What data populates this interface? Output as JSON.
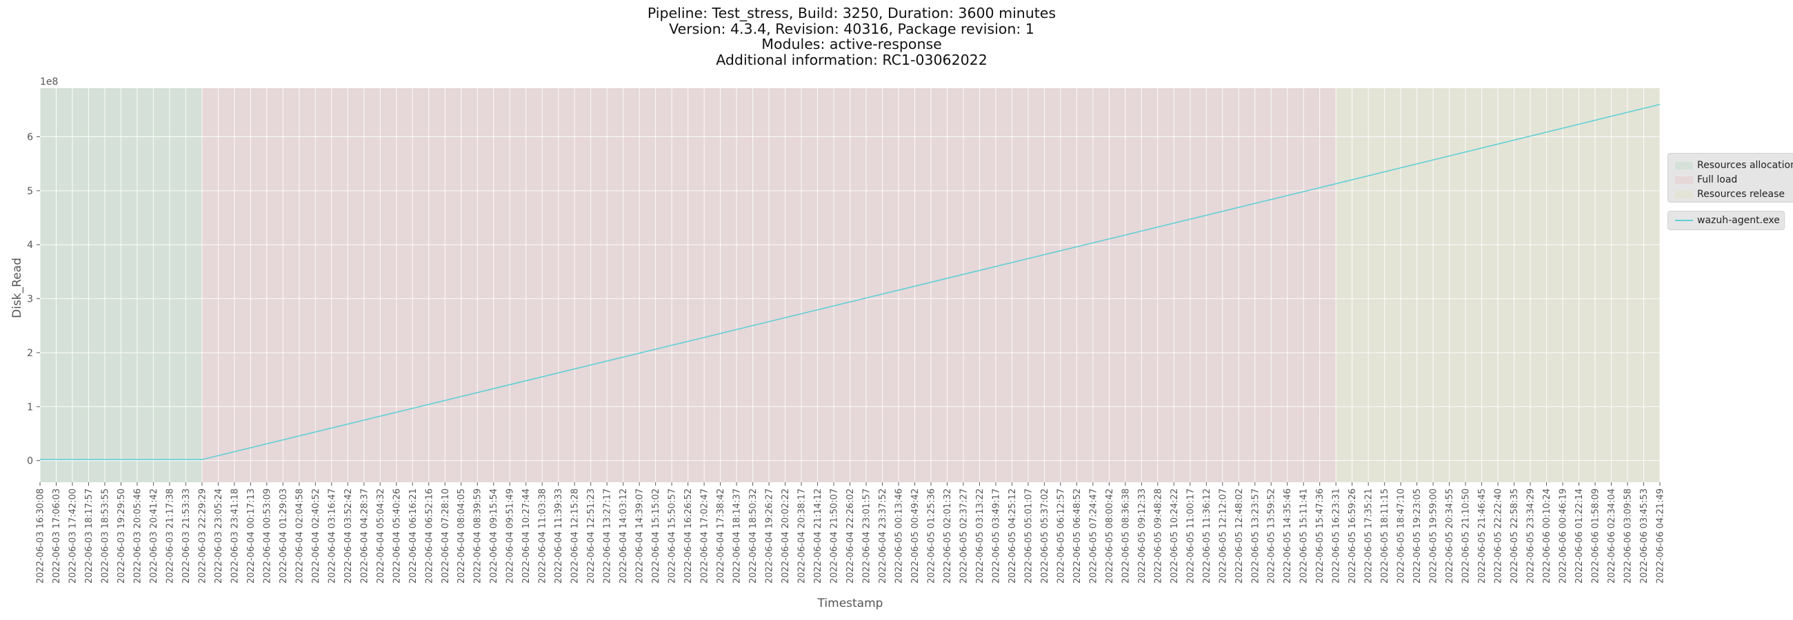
{
  "title_lines": [
    "Pipeline: Test_stress, Build: 3250, Duration: 3600 minutes",
    "Version: 4.3.4, Revision: 40316, Package revision: 1",
    "Modules: active-response",
    "Additional information: RC1-03062022"
  ],
  "colors": {
    "background": "#e5e5e5",
    "grid": "#ffffff",
    "line": "#5fd0d6",
    "phase_allocation": "#d5e1d8",
    "phase_full_load": "#e6d7d9",
    "phase_release": "#e3e4d6"
  },
  "chart_data": {
    "type": "line",
    "xlabel": "Timestamp",
    "ylabel": "Disk_Read",
    "y_offset_label": "1e8",
    "ylim": [
      -0.4,
      6.9
    ],
    "y_ticks": [
      0,
      1,
      2,
      3,
      4,
      5,
      6
    ],
    "y_unit_multiplier": 100000000,
    "grid": true,
    "legend_placement": "right-center",
    "x_ticks": [
      "2022-06-03 16:30:08",
      "2022-06-03 17:06:03",
      "2022-06-03 17:42:00",
      "2022-06-03 18:17:57",
      "2022-06-03 18:53:55",
      "2022-06-03 19:29:50",
      "2022-06-03 20:05:46",
      "2022-06-03 20:41:42",
      "2022-06-03 21:17:38",
      "2022-06-03 21:53:33",
      "2022-06-03 22:29:29",
      "2022-06-03 23:05:24",
      "2022-06-03 23:41:18",
      "2022-06-04 00:17:13",
      "2022-06-04 00:53:09",
      "2022-06-04 01:29:03",
      "2022-06-04 02:04:58",
      "2022-06-04 02:40:52",
      "2022-06-04 03:16:47",
      "2022-06-04 03:52:42",
      "2022-06-04 04:28:37",
      "2022-06-04 05:04:32",
      "2022-06-04 05:40:26",
      "2022-06-04 06:16:21",
      "2022-06-04 06:52:16",
      "2022-06-04 07:28:10",
      "2022-06-04 08:04:05",
      "2022-06-04 08:39:59",
      "2022-06-04 09:15:54",
      "2022-06-04 09:51:49",
      "2022-06-04 10:27:44",
      "2022-06-04 11:03:38",
      "2022-06-04 11:39:33",
      "2022-06-04 12:15:28",
      "2022-06-04 12:51:23",
      "2022-06-04 13:27:17",
      "2022-06-04 14:03:12",
      "2022-06-04 14:39:07",
      "2022-06-04 15:15:02",
      "2022-06-04 15:50:57",
      "2022-06-04 16:26:52",
      "2022-06-04 17:02:47",
      "2022-06-04 17:38:42",
      "2022-06-04 18:14:37",
      "2022-06-04 18:50:32",
      "2022-06-04 19:26:27",
      "2022-06-04 20:02:22",
      "2022-06-04 20:38:17",
      "2022-06-04 21:14:12",
      "2022-06-04 21:50:07",
      "2022-06-04 22:26:02",
      "2022-06-04 23:01:57",
      "2022-06-04 23:37:52",
      "2022-06-05 00:13:46",
      "2022-06-05 00:49:42",
      "2022-06-05 01:25:36",
      "2022-06-05 02:01:32",
      "2022-06-05 02:37:27",
      "2022-06-05 03:13:22",
      "2022-06-05 03:49:17",
      "2022-06-05 04:25:12",
      "2022-06-05 05:01:07",
      "2022-06-05 05:37:02",
      "2022-06-05 06:12:57",
      "2022-06-05 06:48:52",
      "2022-06-05 07:24:47",
      "2022-06-05 08:00:42",
      "2022-06-05 08:36:38",
      "2022-06-05 09:12:33",
      "2022-06-05 09:48:28",
      "2022-06-05 10:24:22",
      "2022-06-05 11:00:17",
      "2022-06-05 11:36:12",
      "2022-06-05 12:12:07",
      "2022-06-05 12:48:02",
      "2022-06-05 13:23:57",
      "2022-06-05 13:59:52",
      "2022-06-05 14:35:46",
      "2022-06-05 15:11:41",
      "2022-06-05 15:47:36",
      "2022-06-05 16:23:31",
      "2022-06-05 16:59:26",
      "2022-06-05 17:35:21",
      "2022-06-05 18:11:15",
      "2022-06-05 18:47:10",
      "2022-06-05 19:23:05",
      "2022-06-05 19:59:00",
      "2022-06-05 20:34:55",
      "2022-06-05 21:10:50",
      "2022-06-05 21:46:45",
      "2022-06-05 22:22:40",
      "2022-06-05 22:58:35",
      "2022-06-05 23:34:29",
      "2022-06-06 00:10:24",
      "2022-06-06 00:46:19",
      "2022-06-06 01:22:14",
      "2022-06-06 01:58:09",
      "2022-06-06 02:34:04",
      "2022-06-06 03:09:58",
      "2022-06-06 03:45:53",
      "2022-06-06 04:21:49"
    ],
    "phases": [
      {
        "name": "Resources allocation",
        "start": "2022-06-03 16:30:08",
        "end": "2022-06-03 22:29:29",
        "color": "#d5e1d8"
      },
      {
        "name": "Full load",
        "start": "2022-06-03 22:29:29",
        "end": "2022-06-05 16:23:31",
        "color": "#e6d7d9"
      },
      {
        "name": "Resources release",
        "start": "2022-06-05 16:23:31",
        "end": "2022-06-06 04:21:49",
        "color": "#e3e4d6"
      }
    ],
    "series": [
      {
        "name": "wazuh-agent.exe",
        "color": "#5fd0d6",
        "points": [
          {
            "x": "2022-06-03 16:30:08",
            "y": 0.02
          },
          {
            "x": "2022-06-03 22:29:29",
            "y": 0.02
          },
          {
            "x": "2022-06-05 16:23:31",
            "y": 5.13
          },
          {
            "x": "2022-06-06 04:21:49",
            "y": 6.6
          }
        ]
      }
    ]
  }
}
